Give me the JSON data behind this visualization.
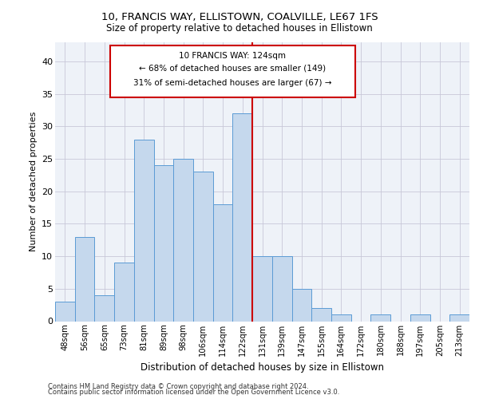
{
  "title1": "10, FRANCIS WAY, ELLISTOWN, COALVILLE, LE67 1FS",
  "title2": "Size of property relative to detached houses in Ellistown",
  "xlabel": "Distribution of detached houses by size in Ellistown",
  "ylabel": "Number of detached properties",
  "bins": [
    "48sqm",
    "56sqm",
    "65sqm",
    "73sqm",
    "81sqm",
    "89sqm",
    "98sqm",
    "106sqm",
    "114sqm",
    "122sqm",
    "131sqm",
    "139sqm",
    "147sqm",
    "155sqm",
    "164sqm",
    "172sqm",
    "180sqm",
    "188sqm",
    "197sqm",
    "205sqm",
    "213sqm"
  ],
  "heights": [
    3,
    13,
    4,
    9,
    28,
    24,
    25,
    23,
    18,
    32,
    10,
    10,
    5,
    2,
    1,
    0,
    1,
    0,
    1,
    0,
    1
  ],
  "bar_color": "#c5d8ed",
  "bar_edge_color": "#5b9bd5",
  "annot_line1": "10 FRANCIS WAY: 124sqm",
  "annot_line2": "← 68% of detached houses are smaller (149)",
  "annot_line3": "31% of semi-detached houses are larger (67) →",
  "vline_color": "#cc0000",
  "vline_bin_index": 9.5,
  "ylim": [
    0,
    43
  ],
  "yticks": [
    0,
    5,
    10,
    15,
    20,
    25,
    30,
    35,
    40
  ],
  "grid_color": "#c8c8d8",
  "background_color": "#eef2f8",
  "footer1": "Contains HM Land Registry data © Crown copyright and database right 2024.",
  "footer2": "Contains public sector information licensed under the Open Government Licence v3.0."
}
